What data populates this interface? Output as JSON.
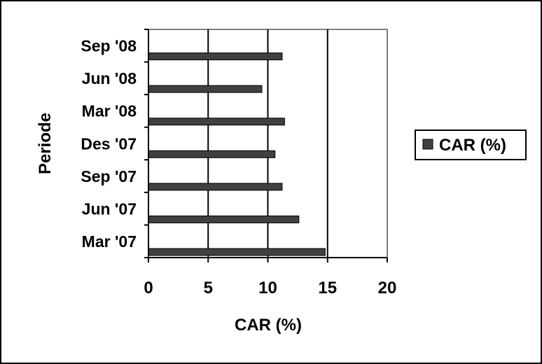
{
  "chart_data": {
    "type": "bar",
    "orientation": "horizontal",
    "categories": [
      "Mar '07",
      "Jun '07",
      "Sep '07",
      "Des '07",
      "Mar '08",
      "Jun '08",
      "Sep '08"
    ],
    "series": [
      {
        "name": "CAR (%)",
        "values": [
          14.8,
          12.6,
          11.2,
          10.6,
          11.4,
          9.5,
          11.2
        ]
      }
    ],
    "xlabel": "CAR (%)",
    "ylabel": "Periode",
    "xlim": [
      0,
      20
    ],
    "xticks": [
      "0",
      "5",
      "10",
      "15",
      "20"
    ],
    "grid": "vertical major gridlines",
    "legend_position": "right",
    "colors": {
      "bar": "#404040",
      "gridline": "#000000",
      "plot_border": "#808080",
      "background": "#ffffff"
    }
  }
}
